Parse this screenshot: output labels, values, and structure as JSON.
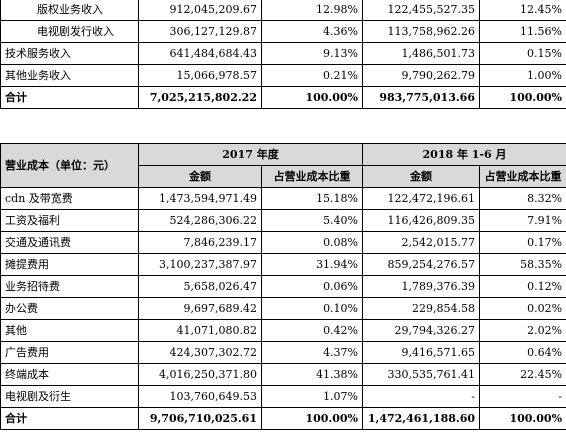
{
  "top_rows": [
    {
      "label": "版权业务收入",
      "v1": "912,045,209.67",
      "p1": "12.98%",
      "v2": "122,455,527.35",
      "p2": "12.45%",
      "indent": 2,
      "bold": false
    },
    {
      "label": "电视剧发行收入",
      "v1": "306,127,129.87",
      "p1": "4.36%",
      "v2": "113,758,962.26",
      "p2": "11.56%",
      "indent": 2,
      "bold": false
    },
    {
      "label": "技术服务收入",
      "v1": "641,484,684.43",
      "p1": "9.13%",
      "v2": "1,486,501.73",
      "p2": "0.15%",
      "indent": 0,
      "bold": false
    },
    {
      "label": "其他业务收入",
      "v1": "15,066,978.57",
      "p1": "0.21%",
      "v2": "9,790,262.79",
      "p2": "1.00%",
      "indent": 0,
      "bold": false
    },
    {
      "label": "合计",
      "v1": "7,025,215,802.22",
      "p1": "100.00%",
      "v2": "983,775,013.66",
      "p2": "100.00%",
      "indent": 0,
      "bold": true
    }
  ],
  "cost_table": {
    "header_label": "营业成本（单位：元）",
    "period1": "2017 年度",
    "period2": "2018 年 1-6 月",
    "col_amount": "金额",
    "col_ratio": "占营业成本比重",
    "rows": [
      {
        "label": "cdn 及带宽费",
        "v1": "1,473,594,971.49",
        "p1": "15.18%",
        "v2": "122,472,196.61",
        "p2": "8.32%",
        "bold": false
      },
      {
        "label": "工资及福利",
        "v1": "524,286,306.22",
        "p1": "5.40%",
        "v2": "116,426,809.35",
        "p2": "7.91%",
        "bold": false
      },
      {
        "label": "交通及通讯费",
        "v1": "7,846,239.17",
        "p1": "0.08%",
        "v2": "2,542,015.77",
        "p2": "0.17%",
        "bold": false
      },
      {
        "label": "摊提费用",
        "v1": "3,100,237,387.97",
        "p1": "31.94%",
        "v2": "859,254,276.57",
        "p2": "58.35%",
        "bold": false
      },
      {
        "label": "业务招待费",
        "v1": "5,658,026.47",
        "p1": "0.06%",
        "v2": "1,789,376.39",
        "p2": "0.12%",
        "bold": false
      },
      {
        "label": "办公费",
        "v1": "9,697,689.42",
        "p1": "0.10%",
        "v2": "229,854.58",
        "p2": "0.02%",
        "bold": false
      },
      {
        "label": "其他",
        "v1": "41,071,080.82",
        "p1": "0.42%",
        "v2": "29,794,326.27",
        "p2": "2.02%",
        "bold": false
      },
      {
        "label": "广告费用",
        "v1": "424,307,302.72",
        "p1": "4.37%",
        "v2": "9,416,571.65",
        "p2": "0.64%",
        "bold": false
      },
      {
        "label": "终端成本",
        "v1": "4,016,250,371.80",
        "p1": "41.38%",
        "v2": "330,535,761.41",
        "p2": "22.45%",
        "bold": false
      },
      {
        "label": "电视剧及衍生",
        "v1": "103,760,649.53",
        "p1": "1.07%",
        "v2": "-",
        "p2": "-",
        "bold": false
      },
      {
        "label": "合计",
        "v1": "9,706,710,025.61",
        "p1": "100.00%",
        "v2": "1,472,461,188.60",
        "p2": "100.00%",
        "bold": true
      }
    ]
  }
}
